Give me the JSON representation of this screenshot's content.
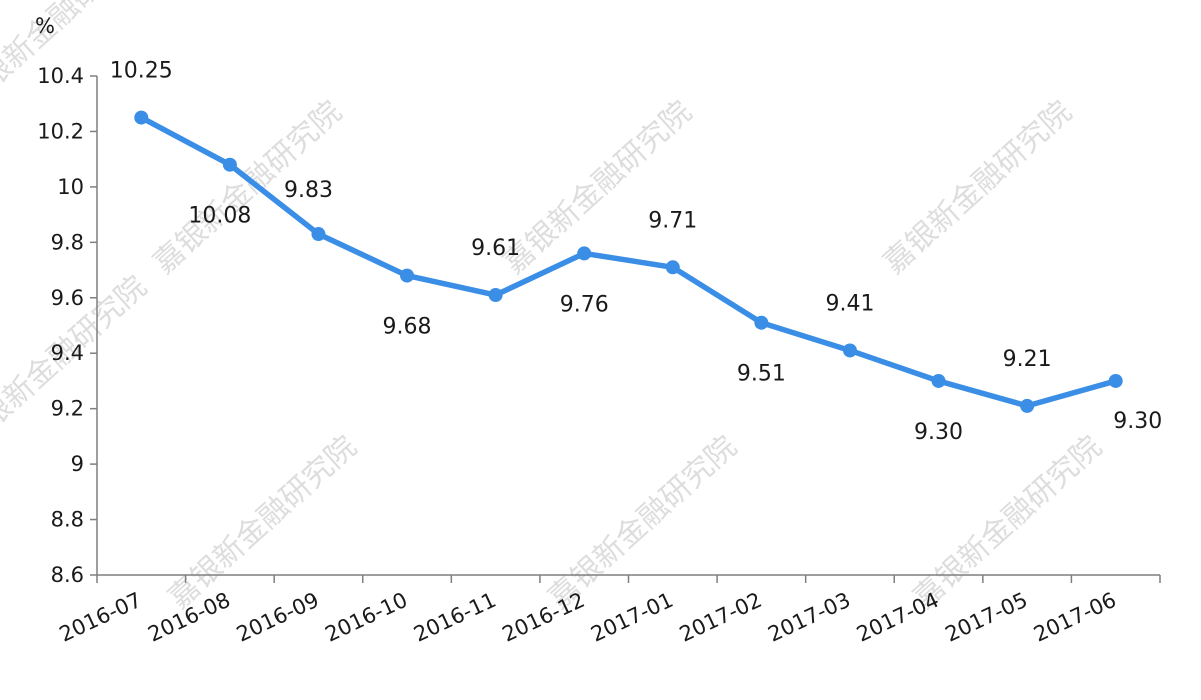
{
  "chart_data": {
    "type": "line",
    "unit_label": "%",
    "categories": [
      "2016-07",
      "2016-08",
      "2016-09",
      "2016-10",
      "2016-11",
      "2016-12",
      "2017-01",
      "2017-02",
      "2017-03",
      "2017-04",
      "2017-05",
      "2017-06"
    ],
    "series": [
      {
        "values": [
          10.25,
          10.08,
          9.83,
          9.68,
          9.61,
          9.76,
          9.71,
          9.51,
          9.41,
          9.3,
          9.21,
          9.3
        ],
        "labels": [
          "10.25",
          "10.08",
          "9.83",
          "9.68",
          "9.61",
          "9.76",
          "9.71",
          "9.51",
          "9.41",
          "9.30",
          "9.21",
          "9.30"
        ],
        "color": "#3a8ee6"
      }
    ],
    "y_ticks": [
      "8.6",
      "8.8",
      "9",
      "9.2",
      "9.4",
      "9.6",
      "9.8",
      "10",
      "10.2",
      "10.4"
    ],
    "ylim": [
      8.6,
      10.4
    ],
    "grid": false,
    "axis_color": "#7f7f7f"
  },
  "watermark": {
    "text": "嘉银新金融研究院",
    "color": "#d8d8d8"
  }
}
